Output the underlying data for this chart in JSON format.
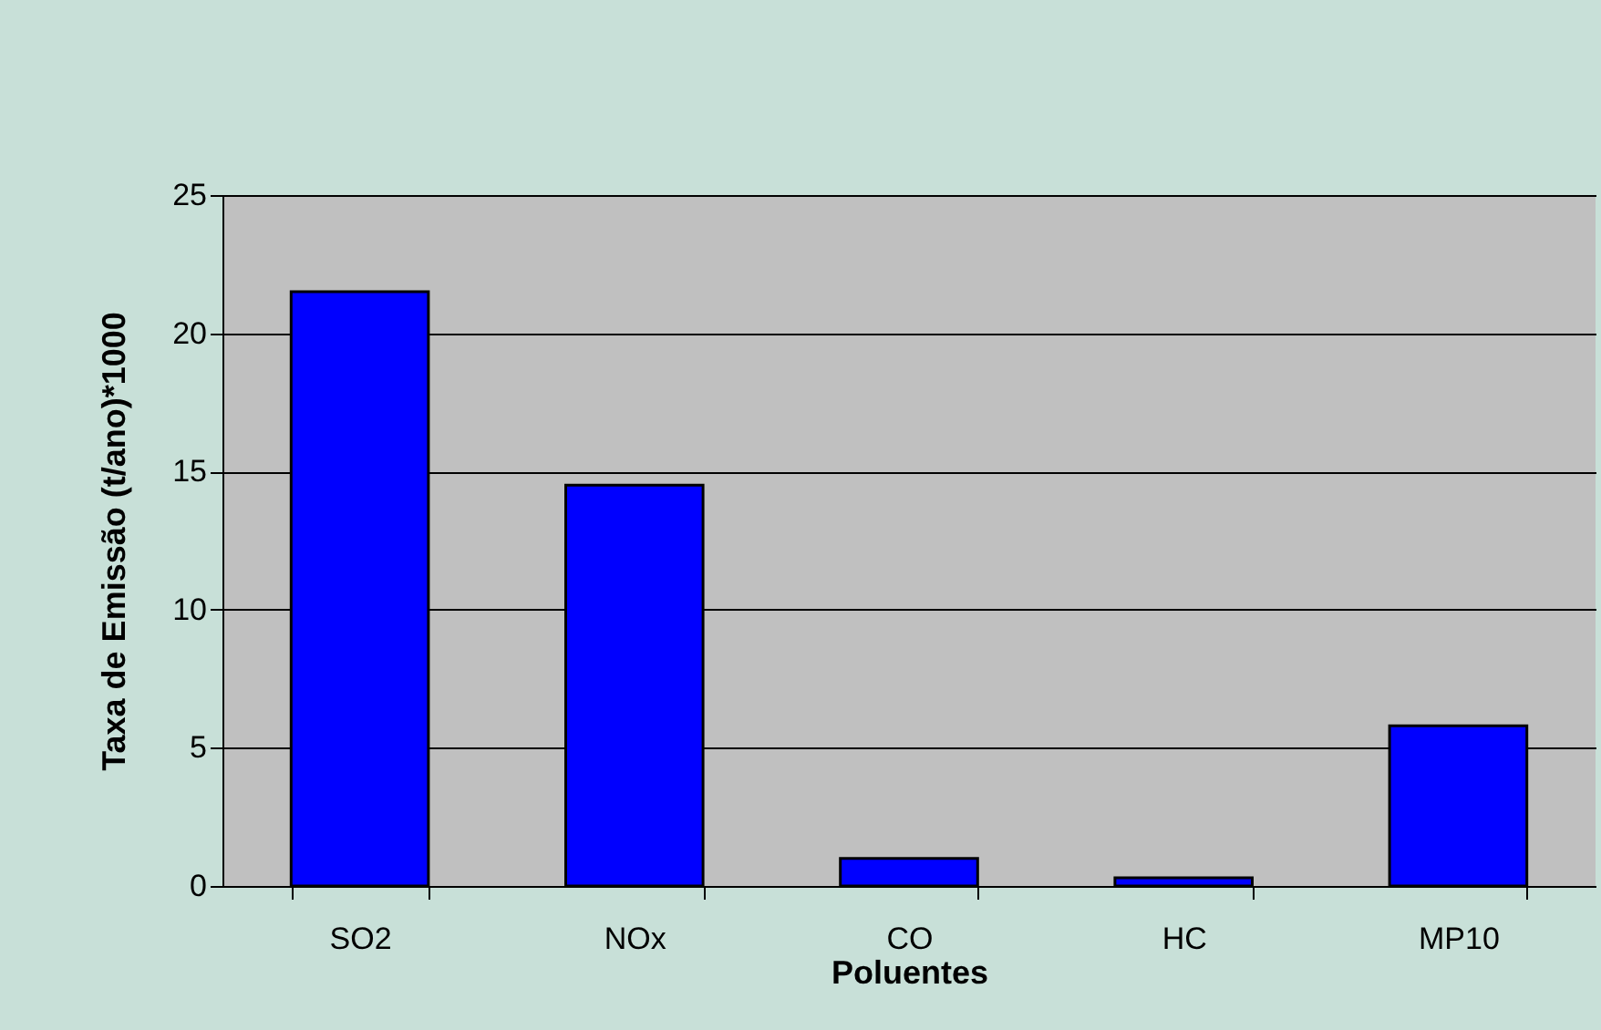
{
  "chart_data": {
    "type": "bar",
    "xlabel": "Poluentes",
    "ylabel": "Taxa de Emissão (t/ano)*1000",
    "categories": [
      "SO2",
      "NOx",
      "CO",
      "HC",
      "MP10"
    ],
    "values": [
      21.5,
      14.5,
      1.0,
      0.3,
      5.8
    ],
    "color": "#0000ff",
    "ylim": [
      0,
      25
    ],
    "yticks": [
      0,
      5,
      10,
      15,
      20,
      25
    ],
    "grid": "y"
  }
}
